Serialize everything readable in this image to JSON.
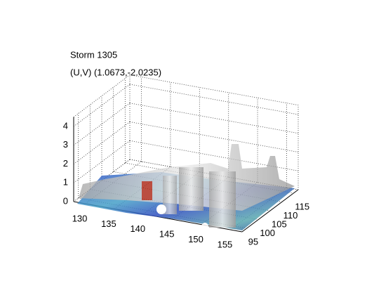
{
  "chart_data": {
    "type": "surface3d",
    "title": "Storm 1305",
    "subtitle": "(U,V) (1.0673,-2.0235)",
    "xlim": [
      128,
      157
    ],
    "xticks": [
      130,
      135,
      140,
      145,
      150,
      155
    ],
    "ylim": [
      93,
      117
    ],
    "yticks": [
      95,
      100,
      105,
      110,
      115
    ],
    "zlim": [
      0,
      4.5
    ],
    "zticks": [
      0,
      1,
      2,
      3,
      4
    ],
    "grid": true
  }
}
